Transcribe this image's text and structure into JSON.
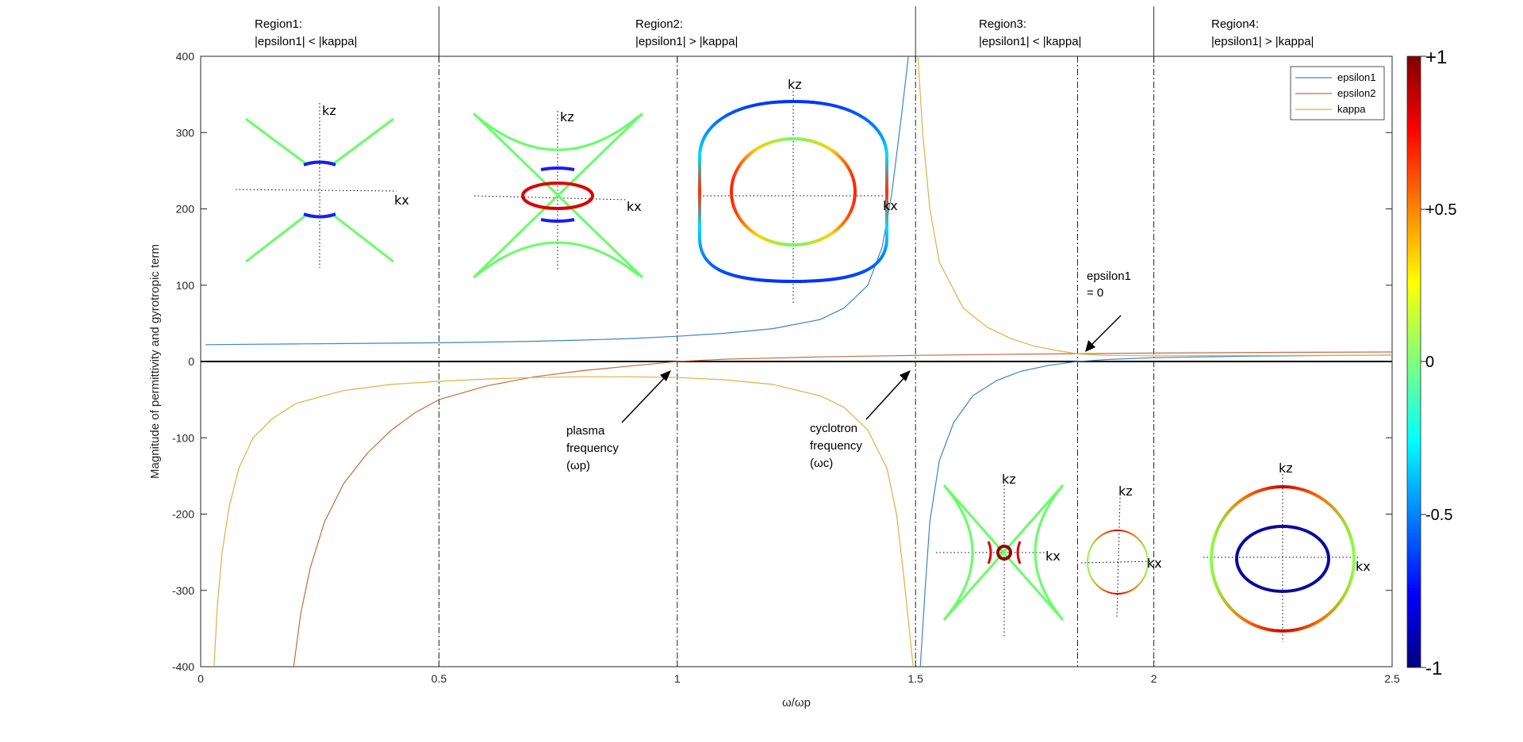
{
  "chart_data": {
    "type": "line",
    "title": "",
    "xlabel": "ω/ωp",
    "ylabel": "Magnitude of permittivity and gyrotropic term",
    "xlim": [
      0,
      2.5
    ],
    "ylim": [
      -400,
      400
    ],
    "x_ticks": [
      "0",
      "0.5",
      "1",
      "1.5",
      "2",
      "2.5"
    ],
    "y_ticks": [
      "400",
      "300",
      "200",
      "100",
      "0",
      "-100",
      "-200",
      "-300",
      "-400"
    ],
    "grid": false,
    "legend_position": "top-right",
    "series": [
      {
        "name": "epsilon1",
        "color": "#3a87c8",
        "points": [
          [
            0.01,
            22
          ],
          [
            0.1,
            22.5
          ],
          [
            0.2,
            23
          ],
          [
            0.3,
            23.5
          ],
          [
            0.4,
            24
          ],
          [
            0.5,
            24.5
          ],
          [
            0.6,
            25.5
          ],
          [
            0.7,
            26.5
          ],
          [
            0.8,
            28
          ],
          [
            0.9,
            30
          ],
          [
            1.0,
            33
          ],
          [
            1.1,
            37
          ],
          [
            1.2,
            43
          ],
          [
            1.3,
            55
          ],
          [
            1.35,
            70
          ],
          [
            1.4,
            100
          ],
          [
            1.43,
            150
          ],
          [
            1.45,
            220
          ],
          [
            1.47,
            320
          ],
          [
            1.485,
            400
          ],
          [
            1.5,
            null
          ],
          [
            1.51,
            -400
          ],
          [
            1.52,
            -300
          ],
          [
            1.53,
            -210
          ],
          [
            1.55,
            -130
          ],
          [
            1.58,
            -80
          ],
          [
            1.62,
            -45
          ],
          [
            1.67,
            -25
          ],
          [
            1.72,
            -13
          ],
          [
            1.78,
            -5
          ],
          [
            1.84,
            0
          ],
          [
            1.9,
            2.5
          ],
          [
            2.0,
            5
          ],
          [
            2.2,
            7
          ],
          [
            2.5,
            8.5
          ]
        ]
      },
      {
        "name": "epsilon2",
        "color": "#c96a3c",
        "points": [
          [
            0.195,
            -400
          ],
          [
            0.21,
            -330
          ],
          [
            0.23,
            -270
          ],
          [
            0.26,
            -210
          ],
          [
            0.3,
            -160
          ],
          [
            0.35,
            -120
          ],
          [
            0.4,
            -90
          ],
          [
            0.45,
            -67
          ],
          [
            0.5,
            -50
          ],
          [
            0.6,
            -32
          ],
          [
            0.7,
            -20
          ],
          [
            0.8,
            -12
          ],
          [
            0.9,
            -6
          ],
          [
            1.0,
            0
          ],
          [
            1.1,
            3
          ],
          [
            1.2,
            4.5
          ],
          [
            1.3,
            6
          ],
          [
            1.5,
            8
          ],
          [
            1.7,
            9.5
          ],
          [
            2.0,
            11
          ],
          [
            2.3,
            12
          ],
          [
            2.5,
            12.5
          ]
        ]
      },
      {
        "name": "kappa",
        "color": "#e0b040",
        "points": [
          [
            0.028,
            -400
          ],
          [
            0.035,
            -320
          ],
          [
            0.045,
            -250
          ],
          [
            0.06,
            -190
          ],
          [
            0.08,
            -140
          ],
          [
            0.11,
            -100
          ],
          [
            0.15,
            -75
          ],
          [
            0.2,
            -55
          ],
          [
            0.3,
            -38
          ],
          [
            0.4,
            -30
          ],
          [
            0.5,
            -26
          ],
          [
            0.6,
            -23
          ],
          [
            0.7,
            -21
          ],
          [
            0.8,
            -20
          ],
          [
            0.9,
            -20
          ],
          [
            1.0,
            -21
          ],
          [
            1.1,
            -24
          ],
          [
            1.2,
            -30
          ],
          [
            1.3,
            -45
          ],
          [
            1.35,
            -60
          ],
          [
            1.4,
            -90
          ],
          [
            1.44,
            -140
          ],
          [
            1.46,
            -200
          ],
          [
            1.475,
            -280
          ],
          [
            1.485,
            -340
          ],
          [
            1.495,
            -400
          ],
          [
            1.5,
            null
          ],
          [
            1.505,
            400
          ],
          [
            1.515,
            300
          ],
          [
            1.53,
            200
          ],
          [
            1.55,
            130
          ],
          [
            1.6,
            70
          ],
          [
            1.65,
            45
          ],
          [
            1.7,
            30
          ],
          [
            1.75,
            20
          ],
          [
            1.8,
            14
          ],
          [
            1.84,
            10
          ],
          [
            1.9,
            8
          ],
          [
            2.0,
            7.5
          ],
          [
            2.2,
            7.8
          ],
          [
            2.5,
            8.2
          ]
        ]
      }
    ],
    "vertical_lines": [
      0.5,
      1.0,
      1.5,
      1.84,
      2.0
    ],
    "region_dividers": [
      0.5,
      1.5,
      2.0
    ],
    "regions": [
      {
        "name": "Region1:",
        "condition": "|epsilon1| < |kappa|"
      },
      {
        "name": "Region2:",
        "condition": "|epsilon1| > |kappa|"
      },
      {
        "name": "Region3:",
        "condition": "|epsilon1| < |kappa|"
      },
      {
        "name": "Region4:",
        "condition": "|epsilon1| > |kappa|"
      }
    ],
    "annotations": [
      {
        "lines": [
          "plasma",
          "frequency",
          "(ωp)"
        ],
        "points_to": [
          1.0,
          0
        ]
      },
      {
        "lines": [
          "cyclotron",
          "frequency",
          "(ωc)"
        ],
        "points_to": [
          1.5,
          0
        ]
      },
      {
        "lines": [
          "epsilon1",
          "= 0"
        ],
        "points_to": [
          1.84,
          10
        ]
      }
    ],
    "insets": [
      {
        "shape": "hyperbola-dip",
        "kz_label": "kz",
        "kx_label": "kx"
      },
      {
        "shape": "hyperbola-ellipse",
        "kz_label": "kz",
        "kx_label": "kx"
      },
      {
        "shape": "double-ellipse",
        "kz_label": "kz",
        "kx_label": "kx"
      },
      {
        "shape": "hyperbola-small-circle",
        "kz_label": "kz",
        "kx_label": "kx"
      },
      {
        "shape": "small-ellipse",
        "kz_label": "kz",
        "kx_label": "kx"
      },
      {
        "shape": "double-ellipse-blue",
        "kz_label": "kz",
        "kx_label": "kx"
      }
    ],
    "colorbar": {
      "ticks": [
        "+1",
        "+0.5",
        "0",
        "-0.5",
        "-1"
      ],
      "range": [
        -1,
        1
      ],
      "colormap": "jet"
    },
    "zero_line_color": "#000000"
  }
}
